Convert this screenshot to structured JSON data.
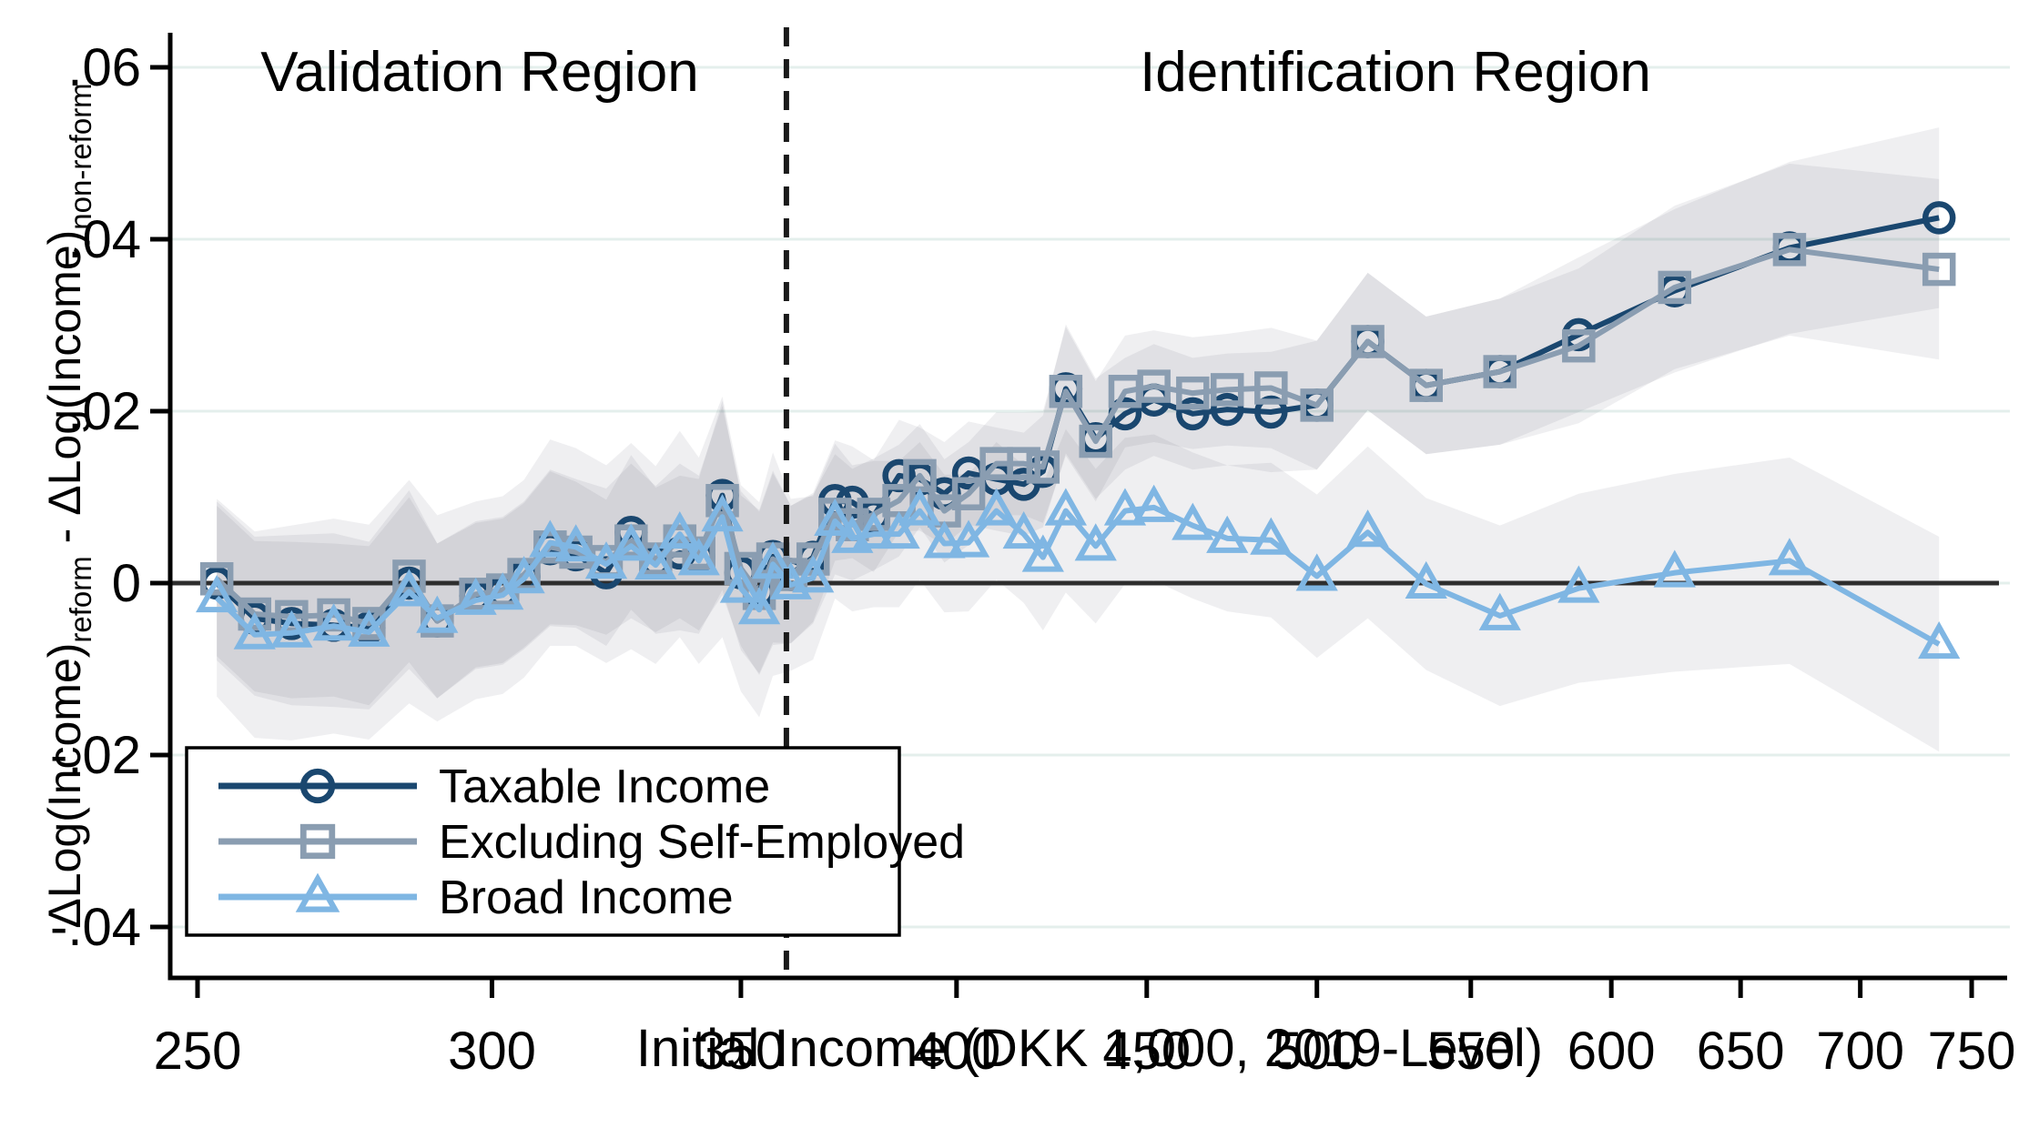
{
  "figure": {
    "region_labels": {
      "validation": "Validation Region",
      "identification": "Identification Region"
    },
    "divider_x": 360,
    "colors": {
      "taxable": "#1a476f",
      "excluding": "#8a9db1",
      "broad": "#7fb6e3",
      "band": "#5a5a68",
      "gridline": "#e4efec",
      "zero_line": "#2e2e2e",
      "axis": "#000000",
      "divider": "#1a1a1a",
      "legend_border": "#000000",
      "background": "#ffffff"
    },
    "y_axis": {
      "title_main": "ΔLog(Income)",
      "title_sub_reform": "reform",
      "title_mid": " - ΔLog(Income)",
      "title_sub_nonreform": "non-reform",
      "tick_labels": [
        ".06",
        ".04",
        ".02",
        "0",
        "-.02",
        "-.04"
      ],
      "tick_values": [
        0.06,
        0.04,
        0.02,
        0,
        -0.02,
        -0.04
      ]
    },
    "x_axis": {
      "title": "Initial Income (DKK 1,000, 2019-Level)",
      "scale": "log",
      "tick_labels": [
        "250",
        "300",
        "350",
        "400",
        "450",
        "500",
        "550",
        "600",
        "650",
        "700",
        "750"
      ],
      "tick_values": [
        250,
        300,
        350,
        400,
        450,
        500,
        550,
        600,
        650,
        700,
        750
      ]
    },
    "legend": {
      "items": [
        {
          "label": "Taxable Income",
          "marker": "circle",
          "color": "#1a476f"
        },
        {
          "label": "Excluding Self-Employed",
          "marker": "square",
          "color": "#8a9db1"
        },
        {
          "label": "Broad Income",
          "marker": "triangle",
          "color": "#7fb6e3"
        }
      ]
    }
  },
  "chart_data": {
    "type": "line",
    "title": "",
    "xlabel": "Initial Income (DKK 1,000, 2019-Level)",
    "ylabel": "ΔLog(Income)reform - ΔLog(Income)non-reform",
    "x_scale": "log",
    "xlim": [
      246,
      765
    ],
    "ylim": [
      -0.042,
      0.064
    ],
    "grid": "horizontal",
    "legend_position": "bottom-left",
    "annotations": [
      "Validation Region",
      "Identification Region"
    ],
    "divider_x": 360,
    "x": [
      253,
      259,
      265,
      272,
      278,
      285,
      290,
      297,
      302,
      306,
      311,
      316,
      322,
      327,
      332,
      337,
      341,
      346,
      350,
      354,
      357,
      361,
      366,
      371,
      375,
      380,
      386,
      391,
      397,
      403,
      410,
      417,
      422,
      428,
      436,
      444,
      452,
      463,
      473,
      486,
      500,
      516,
      535,
      560,
      588,
      624,
      670,
      735
    ],
    "series": [
      {
        "name": "Taxable Income",
        "marker": "circle",
        "color": "#1a476f",
        "values": [
          0.0,
          -0.0041,
          -0.0047,
          -0.0049,
          -0.0052,
          0.0,
          -0.0044,
          -0.0015,
          -0.001,
          0.0008,
          0.004,
          0.0033,
          0.0012,
          0.0059,
          0.0026,
          0.0035,
          0.0031,
          0.0102,
          0.0012,
          -0.001,
          0.0031,
          0.001,
          0.003,
          0.0096,
          0.0094,
          0.0078,
          0.0125,
          0.0121,
          0.0104,
          0.0128,
          0.0121,
          0.0115,
          0.013,
          0.0226,
          0.0168,
          0.0197,
          0.0213,
          0.0197,
          0.0202,
          0.0199,
          0.0207,
          0.0281,
          0.023,
          0.0246,
          0.0289,
          0.034,
          0.039,
          0.0425
        ],
        "band_halfwidth": [
          0.009,
          0.009,
          0.0095,
          0.0095,
          0.0095,
          0.01,
          0.009,
          0.0085,
          0.0085,
          0.0085,
          0.009,
          0.0085,
          0.0085,
          0.009,
          0.0085,
          0.009,
          0.009,
          0.011,
          0.009,
          0.0095,
          0.01,
          0.008,
          0.0075,
          0.007,
          0.0065,
          0.0065,
          0.0065,
          0.006,
          0.006,
          0.006,
          0.006,
          0.006,
          0.0065,
          0.0075,
          0.007,
          0.0065,
          0.0065,
          0.0065,
          0.0065,
          0.007,
          0.0075,
          0.008,
          0.008,
          0.0085,
          0.009,
          0.0095,
          0.01,
          0.0105
        ]
      },
      {
        "name": "Excluding Self-Employed",
        "marker": "square",
        "color": "#8a9db1",
        "values": [
          0.0005,
          -0.0036,
          -0.0039,
          -0.0037,
          -0.0047,
          0.0008,
          -0.0044,
          -0.0013,
          -0.0008,
          0.001,
          0.0042,
          0.0036,
          0.0025,
          0.0049,
          0.0028,
          0.0049,
          0.0035,
          0.0096,
          0.0017,
          -0.0012,
          0.0028,
          0.001,
          0.0028,
          0.008,
          0.0068,
          0.008,
          0.0096,
          0.0125,
          0.0084,
          0.0104,
          0.0139,
          0.0139,
          0.0135,
          0.0223,
          0.0165,
          0.0223,
          0.0229,
          0.0221,
          0.0225,
          0.0227,
          0.0207,
          0.0281,
          0.023,
          0.0246,
          0.0276,
          0.0344,
          0.0388,
          0.0365
        ],
        "band_halfwidth": [
          0.009,
          0.009,
          0.0095,
          0.0095,
          0.0095,
          0.01,
          0.009,
          0.0085,
          0.0085,
          0.0085,
          0.009,
          0.0085,
          0.0085,
          0.009,
          0.0085,
          0.009,
          0.009,
          0.011,
          0.009,
          0.0095,
          0.01,
          0.008,
          0.0075,
          0.007,
          0.0065,
          0.0065,
          0.0065,
          0.006,
          0.006,
          0.006,
          0.006,
          0.006,
          0.0065,
          0.0075,
          0.007,
          0.0065,
          0.0065,
          0.0065,
          0.0065,
          0.007,
          0.0075,
          0.008,
          0.008,
          0.0085,
          0.009,
          0.0095,
          0.01,
          0.0105
        ]
      },
      {
        "name": "Broad Income",
        "marker": "triangle",
        "color": "#7fb6e3",
        "values": [
          -0.0017,
          -0.006,
          -0.0058,
          -0.005,
          -0.0057,
          -0.001,
          -0.0041,
          -0.002,
          -0.0014,
          0.0005,
          0.0047,
          0.0042,
          0.0022,
          0.0043,
          0.0021,
          0.0057,
          0.0026,
          0.0077,
          -0.0006,
          -0.0031,
          0.0022,
          -0.0002,
          0.0006,
          0.0072,
          0.0052,
          0.0057,
          0.0057,
          0.0084,
          0.0046,
          0.0047,
          0.0084,
          0.0057,
          0.003,
          0.0084,
          0.0043,
          0.0084,
          0.0088,
          0.0067,
          0.0052,
          0.005,
          0.0008,
          0.0059,
          -0.0001,
          -0.0038,
          -0.0006,
          0.0012,
          0.0026,
          -0.0071
        ],
        "band_halfwidth": [
          0.0115,
          0.012,
          0.0125,
          0.0125,
          0.0125,
          0.013,
          0.012,
          0.0115,
          0.0115,
          0.0115,
          0.012,
          0.0115,
          0.0115,
          0.012,
          0.0115,
          0.012,
          0.012,
          0.014,
          0.012,
          0.0125,
          0.013,
          0.01,
          0.0095,
          0.009,
          0.0085,
          0.0085,
          0.0085,
          0.008,
          0.008,
          0.008,
          0.008,
          0.008,
          0.0085,
          0.0095,
          0.009,
          0.0085,
          0.0085,
          0.0085,
          0.0085,
          0.009,
          0.0095,
          0.01,
          0.01,
          0.0105,
          0.011,
          0.0115,
          0.012,
          0.0125
        ]
      }
    ]
  }
}
